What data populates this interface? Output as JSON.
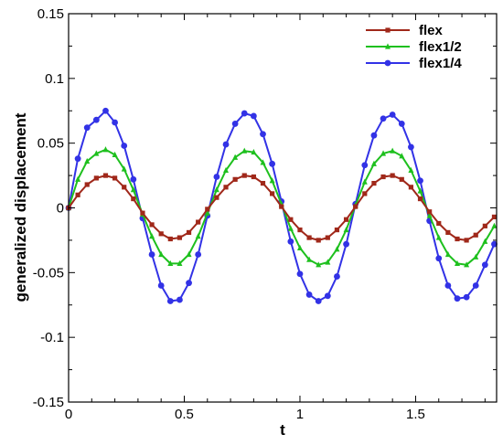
{
  "chart_data": {
    "type": "line",
    "xlabel": "t",
    "ylabel": "generalized displacement",
    "xlim": [
      0,
      1.85
    ],
    "ylim": [
      -0.15,
      0.15
    ],
    "x_ticks": [
      0,
      0.5,
      1,
      1.5
    ],
    "x_tick_labels": [
      "0",
      "0.5",
      "1",
      "1.5"
    ],
    "y_ticks": [
      -0.15,
      -0.1,
      -0.05,
      0,
      0.05,
      0.1,
      0.15
    ],
    "y_tick_labels": [
      "-0.15",
      "-0.1",
      "-0.05",
      "0",
      "0.05",
      "0.1",
      "0.15"
    ],
    "grid": false,
    "legend_position": "top-right",
    "series": [
      {
        "name": "flex",
        "color": "#a0281a",
        "marker": "square",
        "x": [
          0,
          0.04,
          0.08,
          0.12,
          0.16,
          0.2,
          0.24,
          0.28,
          0.32,
          0.36,
          0.4,
          0.44,
          0.48,
          0.52,
          0.56,
          0.6,
          0.64,
          0.68,
          0.72,
          0.76,
          0.8,
          0.84,
          0.88,
          0.92,
          0.96,
          1.0,
          1.04,
          1.08,
          1.12,
          1.16,
          1.2,
          1.24,
          1.28,
          1.32,
          1.36,
          1.4,
          1.44,
          1.48,
          1.52,
          1.56,
          1.6,
          1.64,
          1.68,
          1.72,
          1.76,
          1.8,
          1.84
        ],
        "y": [
          0,
          0.01,
          0.018,
          0.023,
          0.025,
          0.023,
          0.016,
          0.007,
          -0.004,
          -0.013,
          -0.02,
          -0.024,
          -0.023,
          -0.019,
          -0.011,
          -0.001,
          0.008,
          0.016,
          0.022,
          0.025,
          0.024,
          0.019,
          0.011,
          0.001,
          -0.009,
          -0.017,
          -0.023,
          -0.025,
          -0.023,
          -0.017,
          -0.009,
          0.001,
          0.011,
          0.019,
          0.024,
          0.025,
          0.022,
          0.016,
          0.007,
          -0.003,
          -0.012,
          -0.019,
          -0.024,
          -0.025,
          -0.021,
          -0.014,
          -0.007
        ]
      },
      {
        "name": "flex1/2",
        "color": "#1ec01e",
        "marker": "triangle",
        "x": [
          0,
          0.04,
          0.08,
          0.12,
          0.16,
          0.2,
          0.24,
          0.28,
          0.32,
          0.36,
          0.4,
          0.44,
          0.48,
          0.52,
          0.56,
          0.6,
          0.64,
          0.68,
          0.72,
          0.76,
          0.8,
          0.84,
          0.88,
          0.92,
          0.96,
          1.0,
          1.04,
          1.08,
          1.12,
          1.16,
          1.2,
          1.24,
          1.28,
          1.32,
          1.36,
          1.4,
          1.44,
          1.48,
          1.52,
          1.56,
          1.6,
          1.64,
          1.68,
          1.72,
          1.76,
          1.8,
          1.84
        ],
        "y": [
          0,
          0.022,
          0.036,
          0.042,
          0.045,
          0.041,
          0.03,
          0.014,
          -0.005,
          -0.022,
          -0.036,
          -0.043,
          -0.043,
          -0.036,
          -0.022,
          -0.004,
          0.014,
          0.029,
          0.039,
          0.044,
          0.043,
          0.035,
          0.021,
          0.003,
          -0.016,
          -0.031,
          -0.04,
          -0.044,
          -0.042,
          -0.032,
          -0.017,
          0.002,
          0.02,
          0.034,
          0.042,
          0.044,
          0.04,
          0.029,
          0.013,
          -0.006,
          -0.023,
          -0.036,
          -0.043,
          -0.044,
          -0.038,
          -0.026,
          -0.014
        ]
      },
      {
        "name": "flex1/4",
        "color": "#3232e6",
        "marker": "circle",
        "x": [
          0,
          0.04,
          0.08,
          0.12,
          0.16,
          0.2,
          0.24,
          0.28,
          0.32,
          0.36,
          0.4,
          0.44,
          0.48,
          0.52,
          0.56,
          0.6,
          0.64,
          0.68,
          0.72,
          0.76,
          0.8,
          0.84,
          0.88,
          0.92,
          0.96,
          1.0,
          1.04,
          1.08,
          1.12,
          1.16,
          1.2,
          1.24,
          1.28,
          1.32,
          1.36,
          1.4,
          1.44,
          1.48,
          1.52,
          1.56,
          1.6,
          1.64,
          1.68,
          1.72,
          1.76,
          1.8,
          1.84
        ],
        "y": [
          0,
          0.038,
          0.062,
          0.068,
          0.075,
          0.066,
          0.048,
          0.022,
          -0.008,
          -0.036,
          -0.06,
          -0.072,
          -0.071,
          -0.058,
          -0.036,
          -0.006,
          0.024,
          0.049,
          0.065,
          0.073,
          0.071,
          0.057,
          0.034,
          0.005,
          -0.026,
          -0.051,
          -0.067,
          -0.072,
          -0.068,
          -0.053,
          -0.028,
          0.003,
          0.033,
          0.056,
          0.069,
          0.072,
          0.065,
          0.047,
          0.021,
          -0.01,
          -0.039,
          -0.06,
          -0.07,
          -0.069,
          -0.06,
          -0.044,
          -0.028
        ]
      }
    ]
  }
}
